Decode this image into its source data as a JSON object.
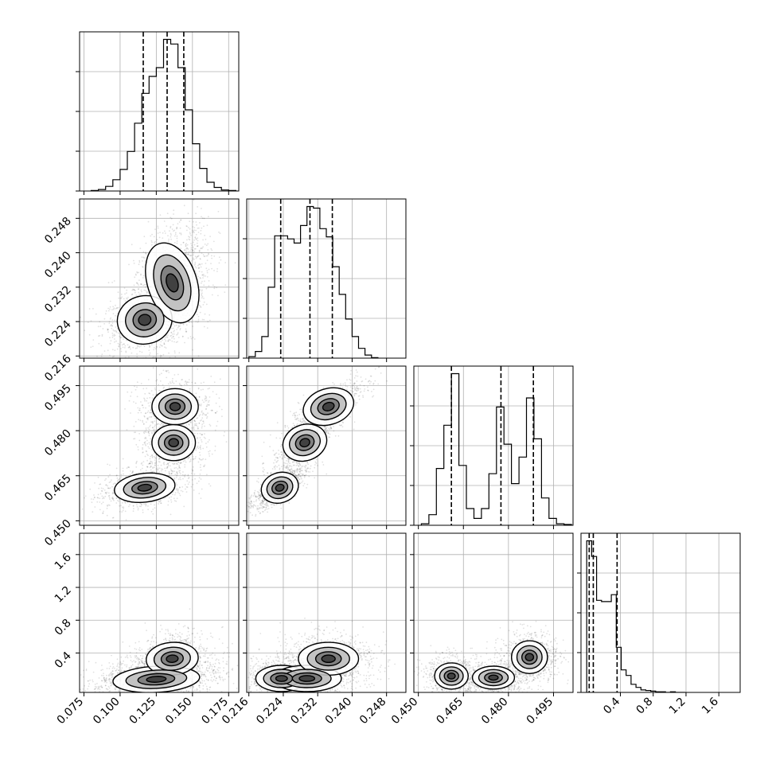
{
  "chart_data": {
    "type": "corner",
    "grid": true,
    "quantile_line_style": "dashed",
    "params": [
      {
        "range": [
          0.072,
          0.182
        ],
        "ticks": [
          0.075,
          0.1,
          0.125,
          0.15,
          0.175
        ],
        "tick_labels": [
          "0.075",
          "0.100",
          "0.125",
          "0.150",
          "0.175"
        ],
        "quantiles": [
          0.116,
          0.1325,
          0.144
        ],
        "hist": {
          "bin_edges": [
            0.08,
            0.085,
            0.09,
            0.095,
            0.1,
            0.105,
            0.11,
            0.115,
            0.12,
            0.125,
            0.13,
            0.135,
            0.14,
            0.145,
            0.15,
            0.155,
            0.16,
            0.165,
            0.17,
            0.175,
            0.18
          ],
          "counts": [
            1,
            3,
            9,
            22,
            42,
            77,
            132,
            190,
            223,
            240,
            295,
            286,
            240,
            158,
            92,
            44,
            17,
            7,
            2,
            1
          ]
        }
      },
      {
        "range": [
          0.2155,
          0.2525
        ],
        "ticks": [
          0.216,
          0.224,
          0.232,
          0.24,
          0.248
        ],
        "tick_labels": [
          "0.216",
          "0.224",
          "0.232",
          "0.240",
          "0.248"
        ],
        "quantiles": [
          0.2234,
          0.2302,
          0.2354
        ],
        "hist": {
          "bin_edges": [
            0.216,
            0.2175,
            0.219,
            0.2205,
            0.222,
            0.2235,
            0.225,
            0.2265,
            0.228,
            0.2295,
            0.231,
            0.2325,
            0.234,
            0.2355,
            0.237,
            0.2385,
            0.24,
            0.2415,
            0.243,
            0.2445,
            0.246
          ],
          "counts": [
            3,
            13,
            42,
            138,
            238,
            238,
            232,
            224,
            258,
            295,
            292,
            252,
            236,
            178,
            124,
            76,
            42,
            19,
            6,
            1
          ]
        }
      },
      {
        "range": [
          0.4485,
          0.5015
        ],
        "ticks": [
          0.45,
          0.465,
          0.48,
          0.495
        ],
        "tick_labels": [
          "0.450",
          "0.465",
          "0.480",
          "0.495"
        ],
        "quantiles": [
          0.461,
          0.4775,
          0.4883
        ],
        "hist": {
          "bin_edges": [
            0.451,
            0.4535,
            0.456,
            0.4585,
            0.461,
            0.4635,
            0.466,
            0.4685,
            0.471,
            0.4735,
            0.476,
            0.4785,
            0.481,
            0.4835,
            0.486,
            0.4885,
            0.491,
            0.4935,
            0.496,
            0.4985,
            0.501
          ],
          "counts": [
            2,
            14,
            75,
            132,
            200,
            79,
            22,
            9,
            22,
            68,
            156,
            107,
            55,
            90,
            168,
            114,
            36,
            9,
            2,
            1
          ]
        }
      },
      {
        "range": [
          -0.08,
          1.86
        ],
        "ticks": [
          0.4,
          0.8,
          1.2,
          1.6
        ],
        "tick_labels": [
          "0.4",
          "0.8",
          "1.2",
          "1.6"
        ],
        "quantiles": [
          0.02,
          0.07,
          0.36
        ],
        "hist": {
          "bin_edges": [
            -0.01,
            0.05,
            0.11,
            0.17,
            0.23,
            0.29,
            0.35,
            0.41,
            0.47,
            0.53,
            0.59,
            0.65,
            0.71,
            0.77,
            0.83,
            0.89,
            0.95,
            1.01,
            1.07,
            1.13,
            1.19
          ],
          "counts": [
            242,
            217,
            147,
            145,
            145,
            156,
            72,
            36,
            27,
            13,
            8,
            4,
            3,
            2,
            1,
            1,
            0,
            1,
            0,
            0
          ]
        }
      }
    ],
    "joint": [
      {
        "cell": [
          1,
          0
        ],
        "modes": [
          {
            "center": [
              0.117,
              0.2244
            ],
            "spread": [
              0.0095,
              0.0028
            ],
            "rho": 0.35,
            "weight": 0.38
          },
          {
            "center": [
              0.136,
              0.233
            ],
            "spread": [
              0.0085,
              0.0048
            ],
            "rho": 0.35,
            "weight": 0.62
          }
        ]
      },
      {
        "cell": [
          2,
          0
        ],
        "modes": [
          {
            "center": [
              0.117,
              0.461
            ],
            "spread": [
              0.0105,
              0.0024
            ],
            "rho": 0.4,
            "weight": 0.38
          },
          {
            "center": [
              0.137,
              0.476
            ],
            "spread": [
              0.0075,
              0.003
            ],
            "rho": 0.0,
            "weight": 0.31
          },
          {
            "center": [
              0.138,
              0.488
            ],
            "spread": [
              0.008,
              0.003
            ],
            "rho": 0.0,
            "weight": 0.31
          }
        ]
      },
      {
        "cell": [
          2,
          1
        ],
        "modes": [
          {
            "center": [
              0.2232,
              0.461
            ],
            "spread": [
              0.0022,
              0.0025
            ],
            "rho": 0.8,
            "weight": 0.38
          },
          {
            "center": [
              0.229,
              0.476
            ],
            "spread": [
              0.0026,
              0.003
            ],
            "rho": 0.8,
            "weight": 0.31
          },
          {
            "center": [
              0.2345,
              0.488
            ],
            "spread": [
              0.003,
              0.003
            ],
            "rho": 0.8,
            "weight": 0.31
          }
        ]
      },
      {
        "cell": [
          3,
          0
        ],
        "modes": [
          {
            "center": [
              0.125,
              0.08
            ],
            "spread": [
              0.015,
              0.08
            ],
            "rho": 0.3,
            "weight": 0.6
          },
          {
            "center": [
              0.136,
              0.33
            ],
            "spread": [
              0.009,
              0.1
            ],
            "rho": 0.2,
            "weight": 0.4
          }
        ]
      },
      {
        "cell": [
          3,
          1
        ],
        "modes": [
          {
            "center": [
              0.2236,
              0.09
            ],
            "spread": [
              0.003,
              0.08
            ],
            "rho": 0.0,
            "weight": 0.35
          },
          {
            "center": [
              0.2295,
              0.09
            ],
            "spread": [
              0.004,
              0.08
            ],
            "rho": 0.0,
            "weight": 0.3
          },
          {
            "center": [
              0.2345,
              0.33
            ],
            "spread": [
              0.0035,
              0.1
            ],
            "rho": 0.0,
            "weight": 0.35
          }
        ]
      },
      {
        "cell": [
          3,
          2
        ],
        "modes": [
          {
            "center": [
              0.461,
              0.12
            ],
            "spread": [
              0.0028,
              0.08
            ],
            "rho": 0.0,
            "weight": 0.35
          },
          {
            "center": [
              0.475,
              0.1
            ],
            "spread": [
              0.0035,
              0.07
            ],
            "rho": 0.0,
            "weight": 0.3
          },
          {
            "center": [
              0.487,
              0.35
            ],
            "spread": [
              0.003,
              0.1
            ],
            "rho": 0.0,
            "weight": 0.35
          }
        ]
      }
    ]
  }
}
